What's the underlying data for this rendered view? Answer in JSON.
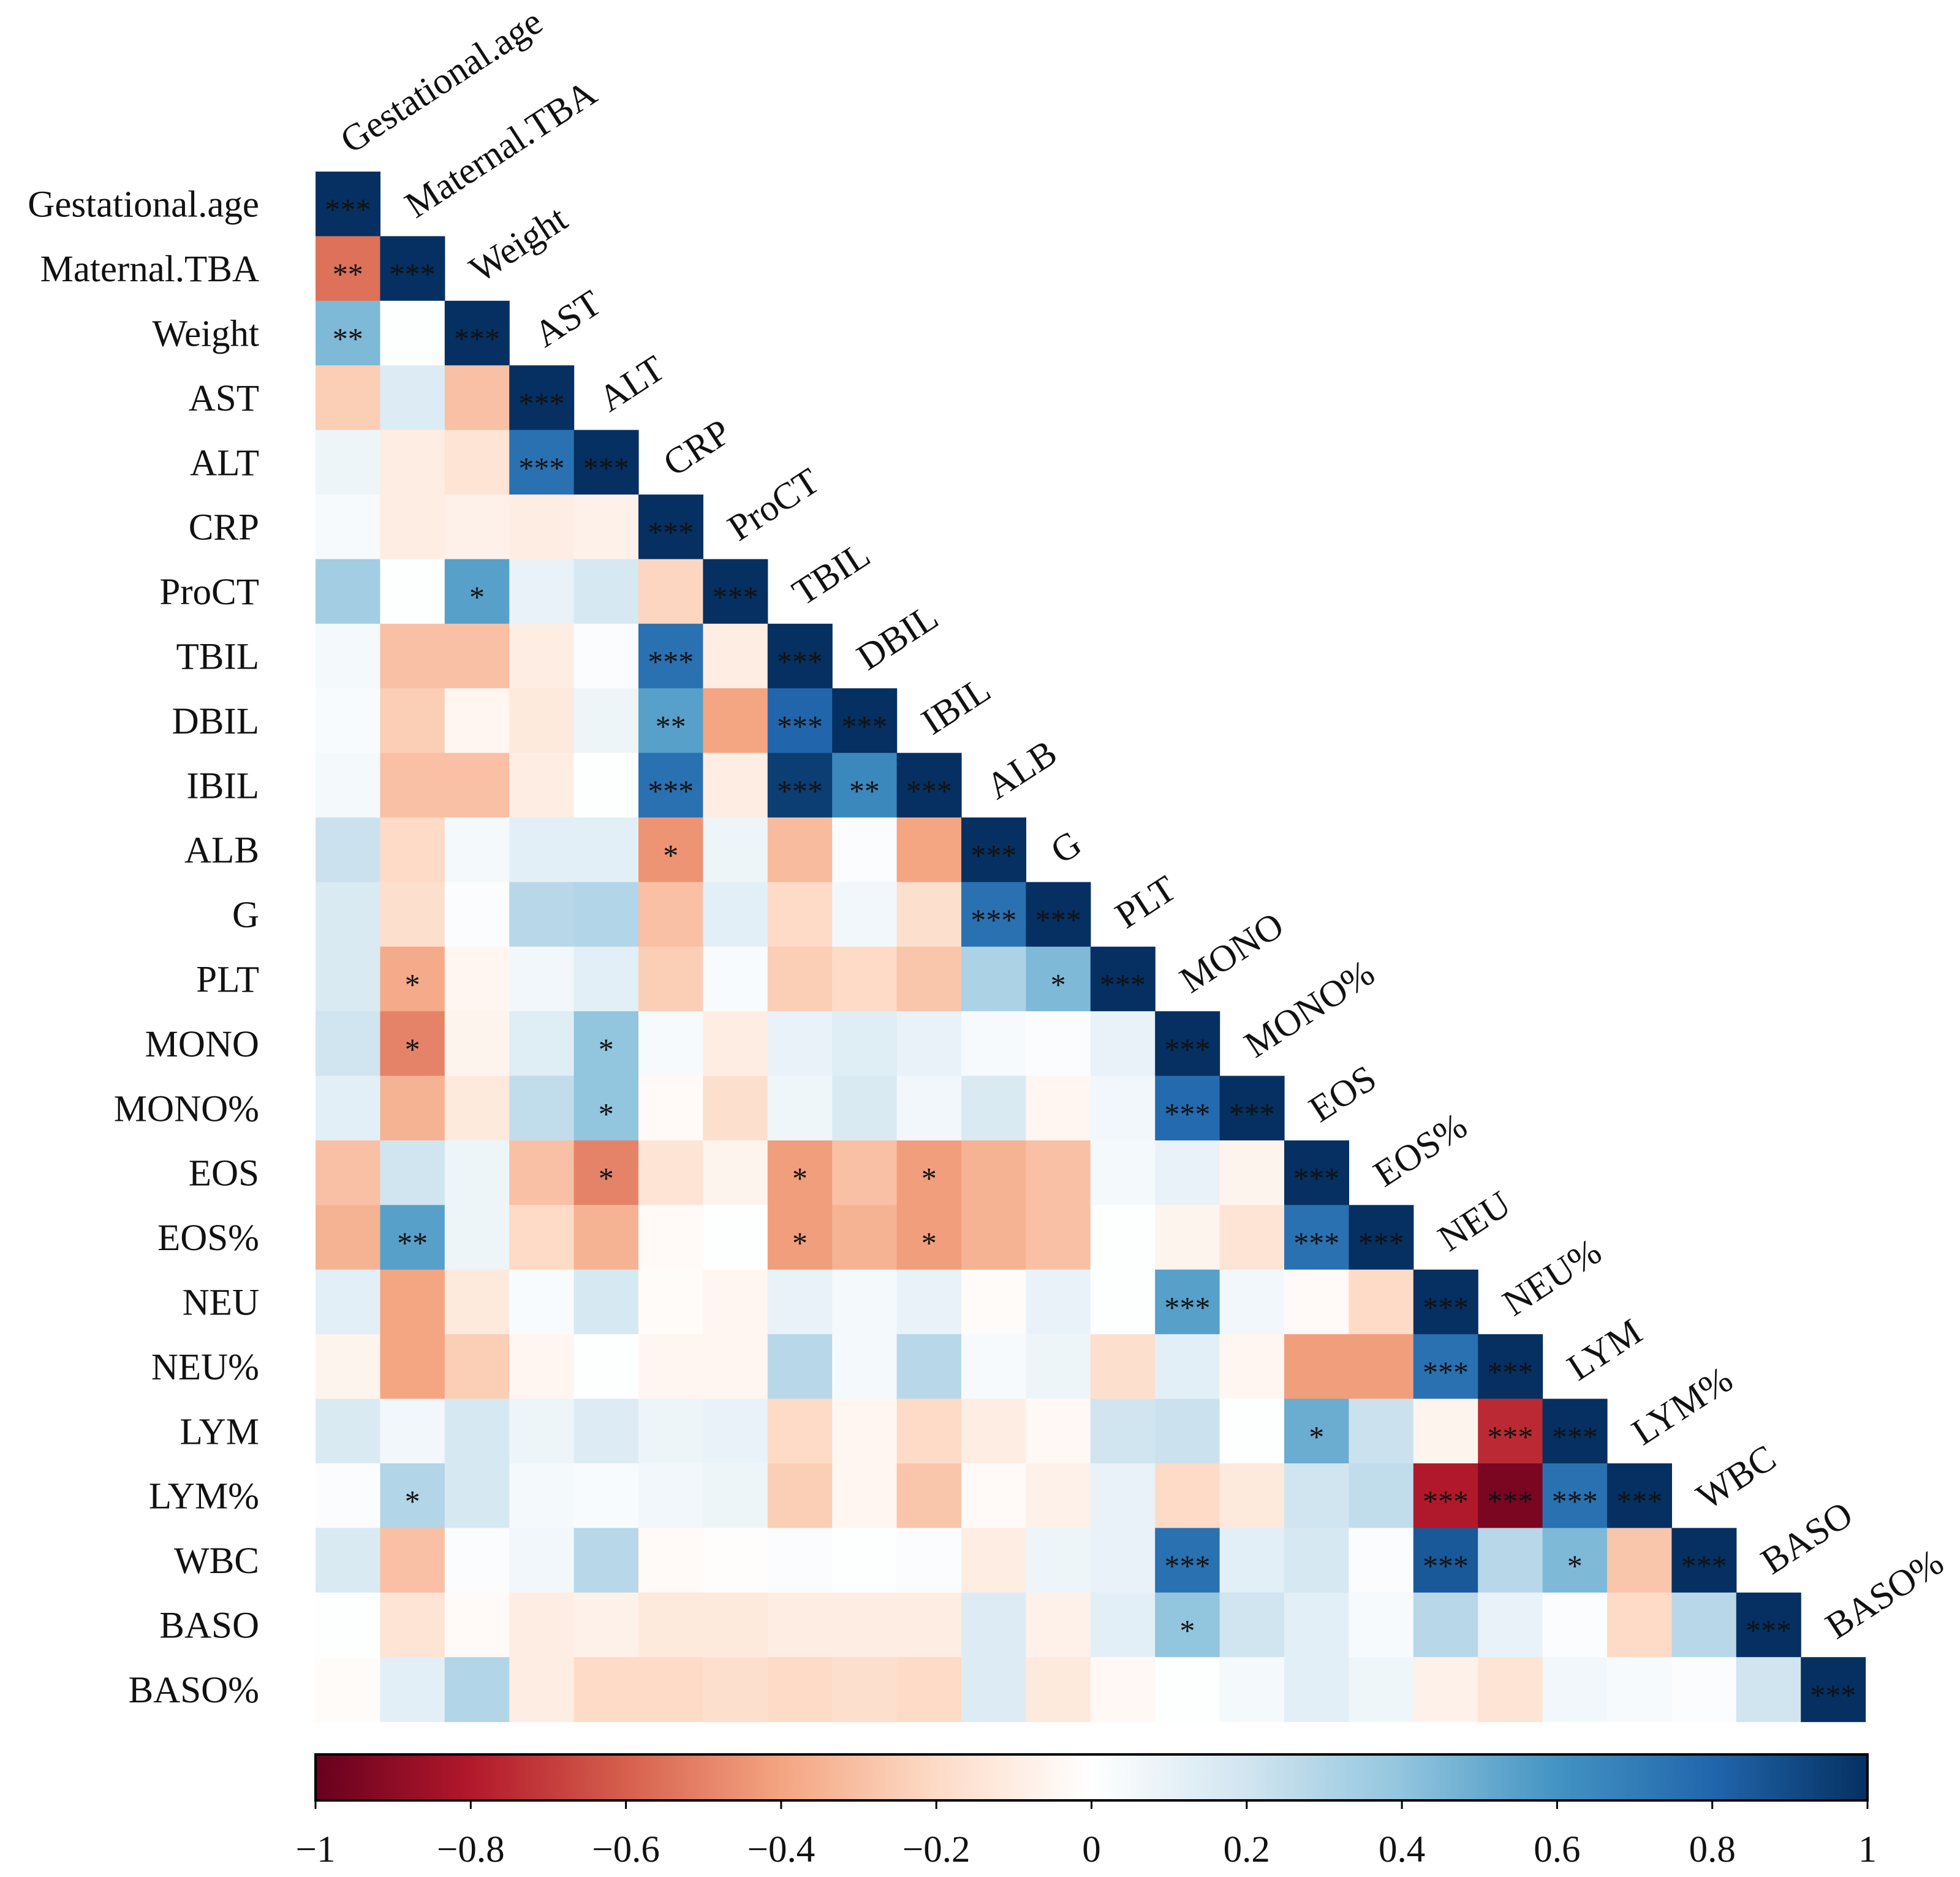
{
  "chart_data": {
    "type": "heatmap",
    "title": "",
    "variables": [
      "Gestational.age",
      "Maternal.TBA",
      "Weight",
      "AST",
      "ALT",
      "CRP",
      "ProCT",
      "TBIL",
      "DBIL",
      "IBIL",
      "ALB",
      "G",
      "PLT",
      "MONO",
      "MONO%",
      "EOS",
      "EOS%",
      "NEU",
      "NEU%",
      "LYM",
      "LYM%",
      "WBC",
      "BASO",
      "BASO%"
    ],
    "matrix_type": "lower",
    "values": [
      [
        1
      ],
      [
        -0.55,
        1
      ],
      [
        0.45,
        0.01,
        1
      ],
      [
        -0.25,
        0.15,
        -0.3,
        1
      ],
      [
        0.08,
        -0.1,
        -0.15,
        0.75,
        1
      ],
      [
        0.04,
        -0.1,
        -0.08,
        -0.1,
        -0.08,
        1
      ],
      [
        0.35,
        0.01,
        0.55,
        0.1,
        0.18,
        -0.22,
        1
      ],
      [
        0.05,
        -0.3,
        -0.3,
        -0.1,
        0.02,
        0.75,
        -0.1,
        1
      ],
      [
        0.03,
        -0.25,
        -0.05,
        -0.12,
        0.08,
        0.55,
        -0.4,
        0.8,
        1
      ],
      [
        0.05,
        -0.3,
        -0.3,
        -0.1,
        0.01,
        0.75,
        -0.1,
        0.95,
        0.65,
        1
      ],
      [
        0.22,
        -0.2,
        0.05,
        0.12,
        0.12,
        -0.45,
        0.08,
        -0.32,
        0.02,
        -0.4,
        1
      ],
      [
        0.16,
        -0.18,
        0.02,
        0.28,
        0.3,
        -0.3,
        0.12,
        -0.2,
        0.06,
        -0.18,
        0.75,
        1
      ],
      [
        0.16,
        -0.38,
        -0.05,
        0.06,
        0.12,
        -0.25,
        0.03,
        -0.25,
        -0.2,
        -0.28,
        0.32,
        0.45,
        1
      ],
      [
        0.2,
        -0.5,
        -0.06,
        0.14,
        0.4,
        0.04,
        -0.1,
        0.1,
        0.14,
        0.1,
        0.04,
        0.02,
        0.1,
        1
      ],
      [
        0.12,
        -0.35,
        -0.12,
        0.25,
        0.4,
        -0.03,
        -0.18,
        0.07,
        0.16,
        0.06,
        0.16,
        -0.05,
        0.06,
        0.78,
        1
      ],
      [
        -0.3,
        0.2,
        0.08,
        -0.3,
        -0.5,
        -0.15,
        -0.06,
        -0.42,
        -0.3,
        -0.42,
        -0.35,
        -0.3,
        0.05,
        0.1,
        -0.06,
        1
      ],
      [
        -0.35,
        0.55,
        0.08,
        -0.2,
        -0.35,
        -0.03,
        0.01,
        -0.42,
        -0.35,
        -0.42,
        -0.35,
        -0.3,
        0.01,
        -0.06,
        -0.15,
        0.75,
        1
      ],
      [
        0.12,
        -0.4,
        -0.12,
        0.03,
        0.18,
        -0.02,
        -0.05,
        0.1,
        0.05,
        0.1,
        -0.02,
        0.1,
        0.01,
        0.55,
        0.06,
        -0.03,
        -0.2,
        1
      ],
      [
        -0.06,
        -0.4,
        -0.25,
        -0.05,
        0.01,
        -0.05,
        -0.05,
        0.28,
        0.05,
        0.28,
        0.04,
        0.08,
        -0.18,
        0.12,
        -0.05,
        -0.42,
        -0.42,
        0.75,
        1
      ],
      [
        0.16,
        0.06,
        0.18,
        0.08,
        0.15,
        0.08,
        0.1,
        -0.2,
        -0.05,
        -0.2,
        -0.1,
        -0.04,
        0.2,
        0.22,
        0.01,
        0.5,
        0.22,
        -0.06,
        -0.75,
        1
      ],
      [
        0.02,
        0.3,
        0.18,
        0.05,
        0.03,
        0.06,
        0.08,
        -0.25,
        -0.05,
        -0.28,
        -0.03,
        -0.08,
        0.1,
        -0.2,
        -0.12,
        0.2,
        0.25,
        -0.8,
        -0.95,
        0.75,
        1
      ],
      [
        0.16,
        -0.3,
        0.02,
        0.06,
        0.28,
        -0.03,
        -0.01,
        0.02,
        0.01,
        0.02,
        -0.1,
        0.08,
        0.1,
        0.75,
        0.12,
        0.18,
        0.02,
        0.85,
        0.28,
        0.45,
        -0.28,
        1
      ],
      [
        0.01,
        -0.15,
        -0.03,
        -0.1,
        -0.08,
        -0.12,
        -0.12,
        -0.1,
        -0.1,
        -0.1,
        0.15,
        -0.08,
        0.12,
        0.4,
        0.2,
        0.12,
        0.04,
        0.28,
        0.1,
        0.02,
        -0.2,
        0.28,
        1
      ],
      [
        -0.02,
        0.12,
        0.3,
        -0.1,
        -0.2,
        -0.2,
        -0.18,
        -0.2,
        -0.18,
        -0.2,
        0.15,
        -0.12,
        -0.04,
        0.01,
        0.05,
        0.12,
        0.07,
        -0.08,
        -0.15,
        0.06,
        0.04,
        0.02,
        0.2,
        1
      ]
    ],
    "significance": [
      [
        0,
        0,
        "***"
      ],
      [
        1,
        0,
        "**"
      ],
      [
        1,
        1,
        "***"
      ],
      [
        2,
        0,
        "**"
      ],
      [
        2,
        2,
        "***"
      ],
      [
        3,
        3,
        "***"
      ],
      [
        4,
        3,
        "***"
      ],
      [
        4,
        4,
        "***"
      ],
      [
        5,
        5,
        "***"
      ],
      [
        6,
        2,
        "*"
      ],
      [
        6,
        6,
        "***"
      ],
      [
        7,
        5,
        "***"
      ],
      [
        7,
        7,
        "***"
      ],
      [
        8,
        5,
        "**"
      ],
      [
        8,
        7,
        "***"
      ],
      [
        8,
        8,
        "***"
      ],
      [
        9,
        5,
        "***"
      ],
      [
        9,
        7,
        "***"
      ],
      [
        9,
        8,
        "**"
      ],
      [
        9,
        9,
        "***"
      ],
      [
        10,
        5,
        "*"
      ],
      [
        10,
        10,
        "***"
      ],
      [
        11,
        10,
        "***"
      ],
      [
        11,
        11,
        "***"
      ],
      [
        12,
        1,
        "*"
      ],
      [
        12,
        11,
        "*"
      ],
      [
        12,
        12,
        "***"
      ],
      [
        13,
        1,
        "*"
      ],
      [
        13,
        4,
        "*"
      ],
      [
        13,
        13,
        "***"
      ],
      [
        14,
        4,
        "*"
      ],
      [
        14,
        13,
        "***"
      ],
      [
        14,
        14,
        "***"
      ],
      [
        15,
        4,
        "*"
      ],
      [
        15,
        7,
        "*"
      ],
      [
        15,
        9,
        "*"
      ],
      [
        15,
        15,
        "***"
      ],
      [
        16,
        1,
        "**"
      ],
      [
        16,
        7,
        "*"
      ],
      [
        16,
        9,
        "*"
      ],
      [
        16,
        15,
        "***"
      ],
      [
        16,
        16,
        "***"
      ],
      [
        17,
        13,
        "***"
      ],
      [
        17,
        17,
        "***"
      ],
      [
        18,
        17,
        "***"
      ],
      [
        18,
        18,
        "***"
      ],
      [
        19,
        15,
        "*"
      ],
      [
        19,
        18,
        "***"
      ],
      [
        19,
        19,
        "***"
      ],
      [
        20,
        1,
        "*"
      ],
      [
        20,
        17,
        "***"
      ],
      [
        20,
        18,
        "***"
      ],
      [
        20,
        19,
        "***"
      ],
      [
        20,
        20,
        "***"
      ],
      [
        21,
        13,
        "***"
      ],
      [
        21,
        17,
        "***"
      ],
      [
        21,
        19,
        "*"
      ],
      [
        21,
        21,
        "***"
      ],
      [
        22,
        13,
        "*"
      ],
      [
        22,
        22,
        "***"
      ],
      [
        23,
        23,
        "***"
      ]
    ],
    "colorbar": {
      "range": [
        -1,
        1
      ],
      "ticks": [
        -1,
        -0.8,
        -0.6,
        -0.4,
        -0.2,
        0,
        0.2,
        0.4,
        0.6,
        0.8,
        1
      ],
      "tick_labels": [
        "−1",
        "−0.8",
        "−0.6",
        "−0.4",
        "−0.2",
        "0",
        "0.2",
        "0.4",
        "0.6",
        "0.8",
        "1"
      ],
      "colors": [
        "#67001f",
        "#b2182b",
        "#d6604d",
        "#f4a582",
        "#fddbc7",
        "#ffffff",
        "#d1e5f0",
        "#92c5de",
        "#4393c3",
        "#2166ac",
        "#053061"
      ]
    },
    "legend_position": "bottom"
  }
}
